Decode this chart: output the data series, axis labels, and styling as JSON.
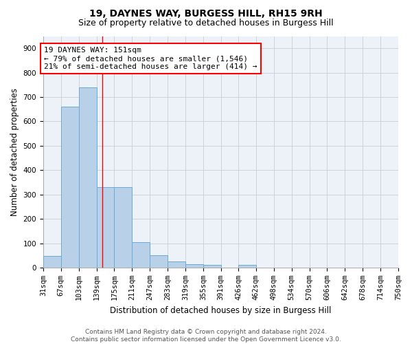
{
  "title": "19, DAYNES WAY, BURGESS HILL, RH15 9RH",
  "subtitle": "Size of property relative to detached houses in Burgess Hill",
  "xlabel": "Distribution of detached houses by size in Burgess Hill",
  "ylabel": "Number of detached properties",
  "bar_values": [
    48,
    660,
    740,
    330,
    330,
    105,
    50,
    25,
    15,
    10,
    0,
    10,
    0,
    0,
    0,
    0,
    0,
    0,
    0,
    0
  ],
  "bin_edges": [
    31,
    67,
    103,
    139,
    175,
    211,
    247,
    283,
    319,
    355,
    391,
    426,
    462,
    498,
    534,
    570,
    606,
    642,
    678,
    714,
    750
  ],
  "x_tick_labels": [
    "31sqm",
    "67sqm",
    "103sqm",
    "139sqm",
    "175sqm",
    "211sqm",
    "247sqm",
    "283sqm",
    "319sqm",
    "355sqm",
    "391sqm",
    "426sqm",
    "462sqm",
    "498sqm",
    "534sqm",
    "570sqm",
    "606sqm",
    "642sqm",
    "678sqm",
    "714sqm",
    "750sqm"
  ],
  "bar_color": "#b8d0e8",
  "bar_edge_color": "#6aaad4",
  "red_line_x": 151,
  "annotation_line1": "19 DAYNES WAY: 151sqm",
  "annotation_line2": "← 79% of detached houses are smaller (1,546)",
  "annotation_line3": "21% of semi-detached houses are larger (414) →",
  "ylim": [
    0,
    950
  ],
  "yticks": [
    0,
    100,
    200,
    300,
    400,
    500,
    600,
    700,
    800,
    900
  ],
  "grid_color": "#cccccc",
  "background_color": "#edf2f9",
  "footer_text": "Contains HM Land Registry data © Crown copyright and database right 2024.\nContains public sector information licensed under the Open Government Licence v3.0.",
  "title_fontsize": 10,
  "subtitle_fontsize": 9,
  "xlabel_fontsize": 8.5,
  "ylabel_fontsize": 8.5,
  "tick_fontsize": 7.5,
  "annotation_fontsize": 8,
  "footer_fontsize": 6.5
}
